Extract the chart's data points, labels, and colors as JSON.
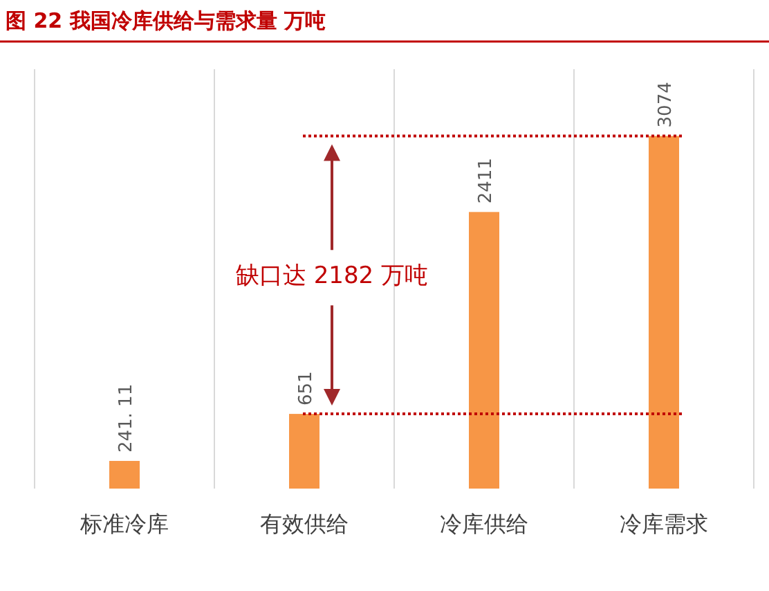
{
  "chart_data": {
    "type": "bar",
    "title": "图 22 我国冷库供给与需求量 万吨",
    "categories": [
      "标准冷库",
      "有效供给",
      "冷库供给",
      "冷库需求"
    ],
    "values": [
      241.11,
      651,
      2411,
      3074
    ],
    "value_labels": [
      "241. 11",
      "651",
      "2411",
      "3074"
    ],
    "color": "#f79646",
    "grid": "x",
    "ref_lines": [
      {
        "axis": "y",
        "value": 651,
        "color": "#c00000",
        "line_style": "dotted"
      },
      {
        "axis": "y",
        "value": 3074,
        "color": "#c00000",
        "line_style": "dotted"
      }
    ],
    "annotations": [
      "缺口达 2182 万吨"
    ]
  }
}
